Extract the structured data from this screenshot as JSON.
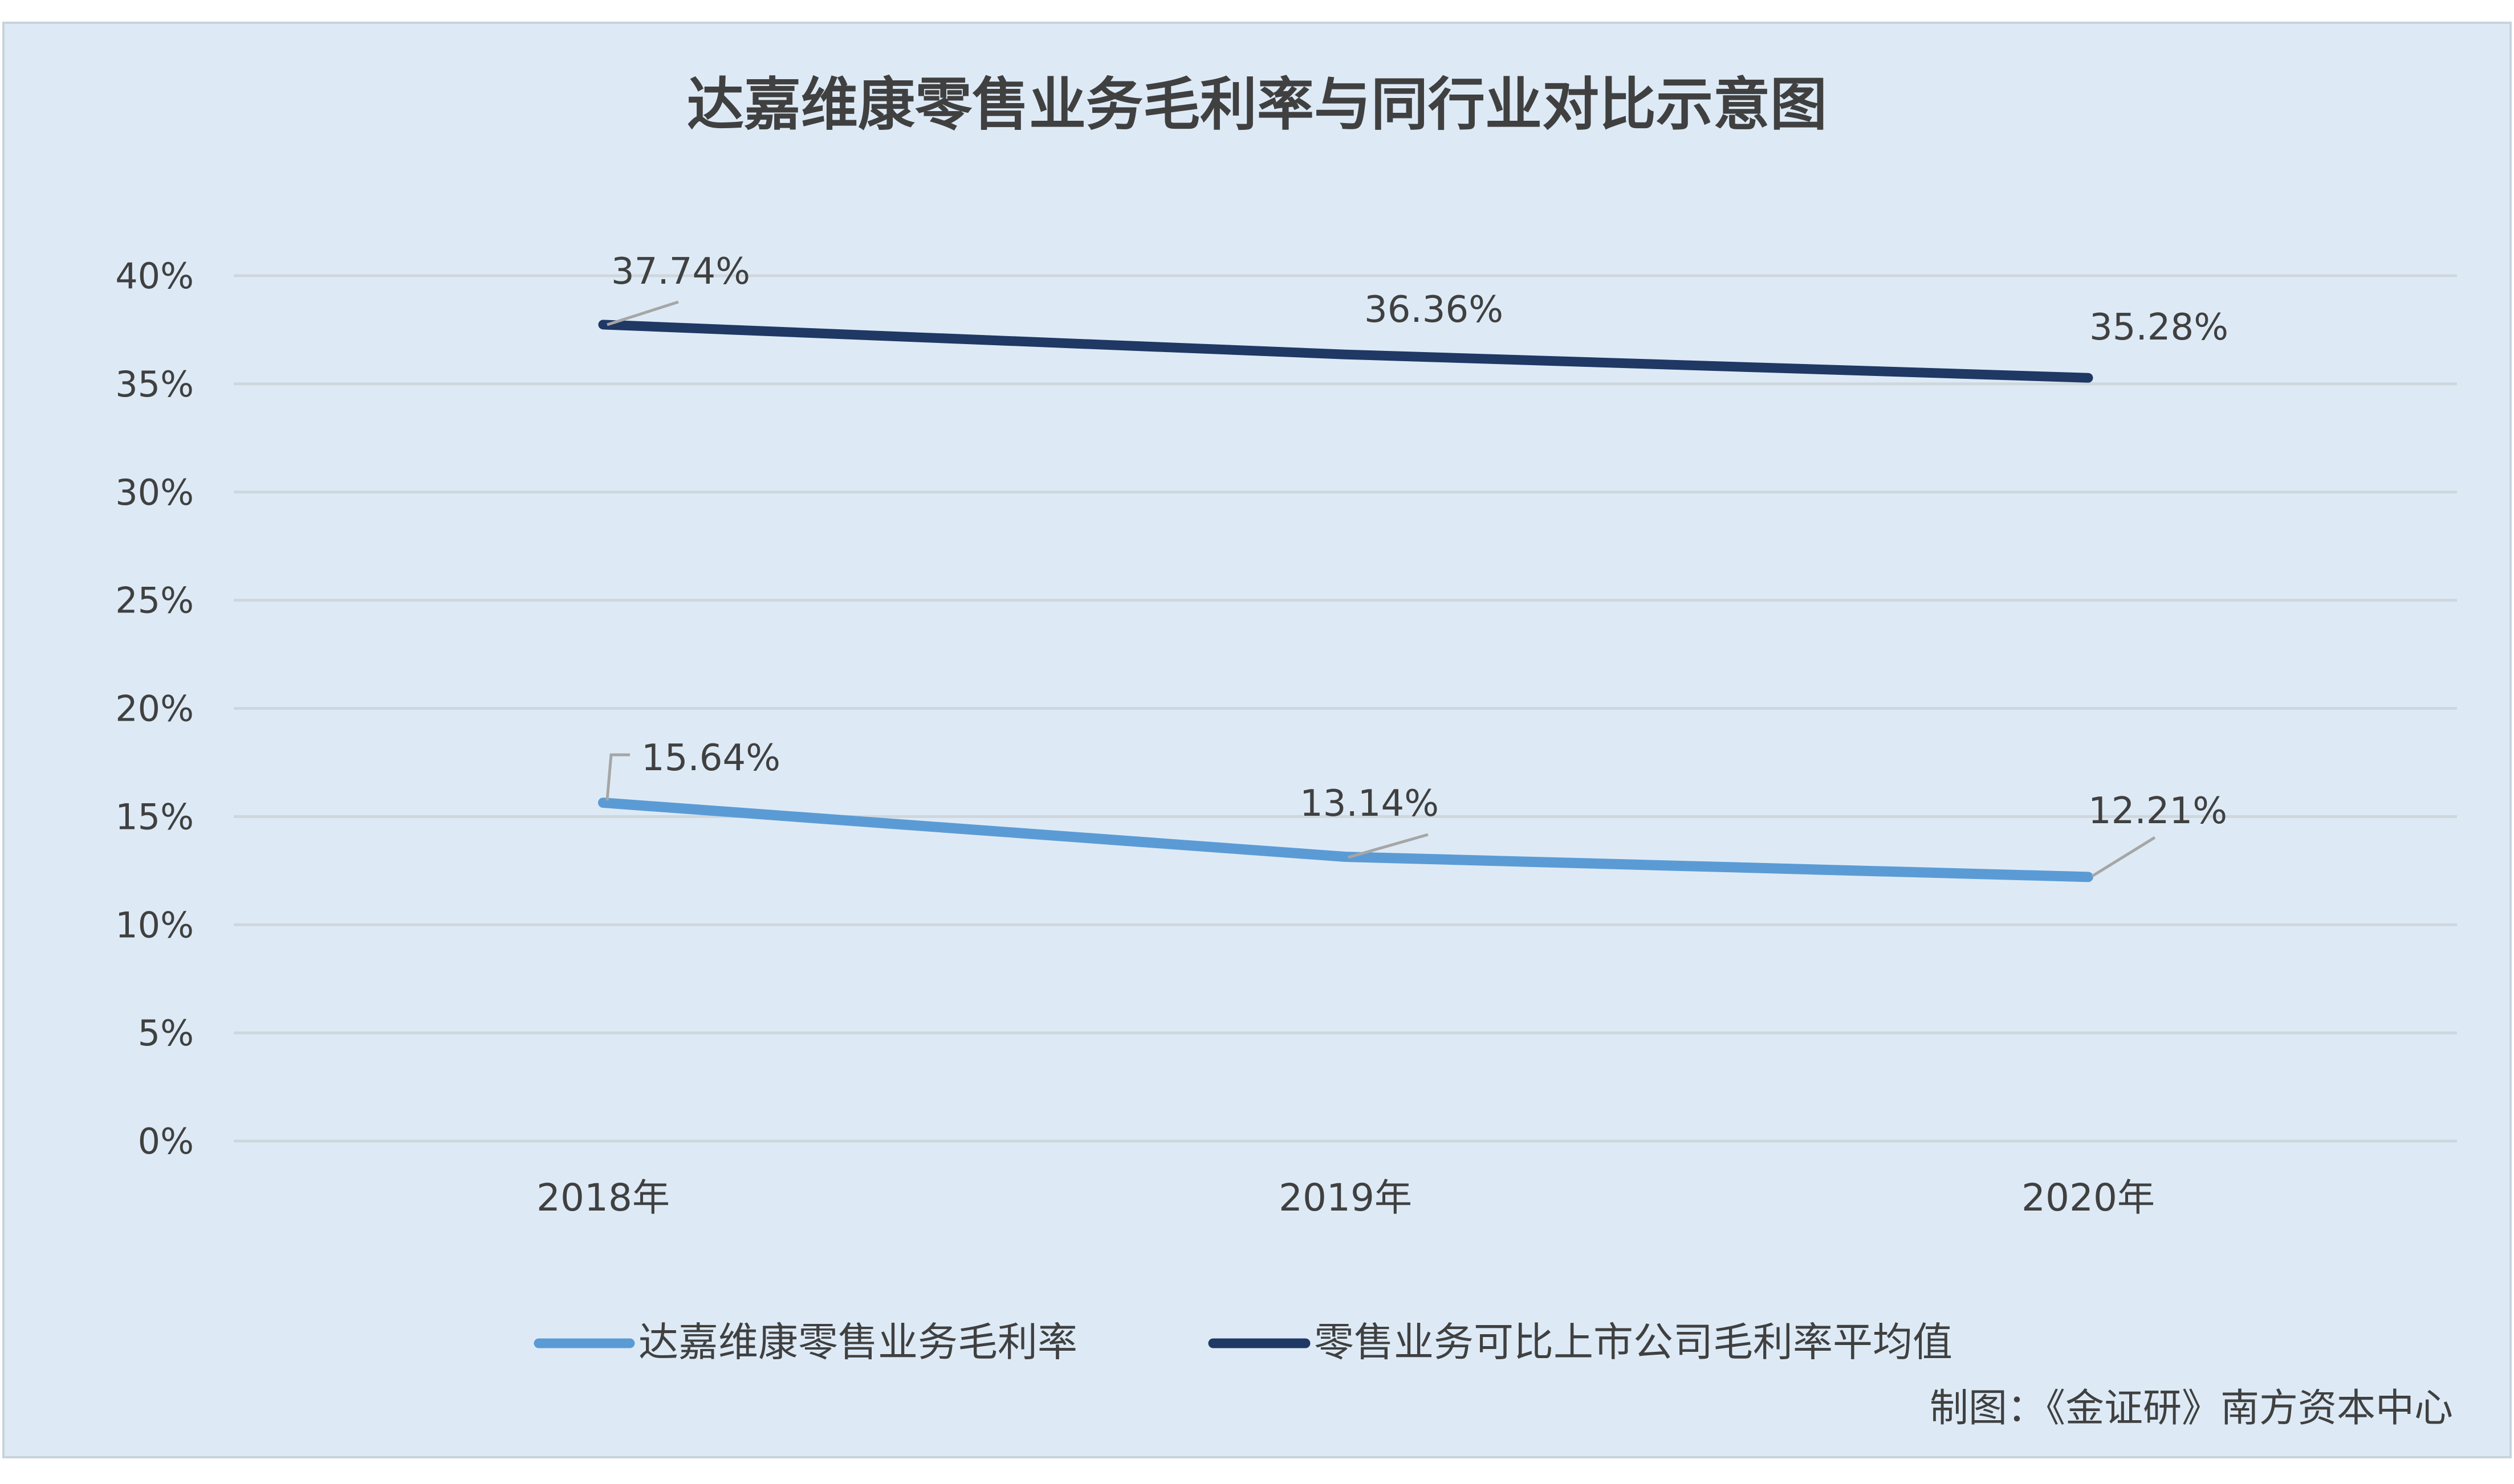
{
  "chart_data": {
    "type": "line",
    "title": "达嘉维康零售业务毛利率与同行业对比示意图",
    "xlabel": "",
    "ylabel": "",
    "categories": [
      "2018年",
      "2019年",
      "2020年"
    ],
    "ylim": [
      0,
      40
    ],
    "yticks": [
      0,
      5,
      10,
      15,
      20,
      25,
      30,
      35,
      40
    ],
    "ytick_labels": [
      "0%",
      "5%",
      "10%",
      "15%",
      "20%",
      "25%",
      "30%",
      "35%",
      "40%"
    ],
    "grid": "horizontal",
    "legend_position": "bottom",
    "series": [
      {
        "name": "达嘉维康零售业务毛利率",
        "values": [
          15.64,
          13.14,
          12.21
        ],
        "labels": [
          "15.64%",
          "13.14%",
          "12.21%"
        ],
        "color": "#5b9bd5"
      },
      {
        "name": "零售业务可比上市公司毛利率平均值",
        "values": [
          37.74,
          36.36,
          35.28
        ],
        "labels": [
          "37.74%",
          "36.36%",
          "35.28%"
        ],
        "color": "#1f3864"
      }
    ],
    "footnote": "制图：《金证研》南方资本中心"
  },
  "colors": {
    "background": "#ddeaf6",
    "border": "#c8d3dc",
    "gridline": "#cfd6dc",
    "text": "#404040",
    "title": "#404040",
    "leader": "#a6a6a6"
  }
}
